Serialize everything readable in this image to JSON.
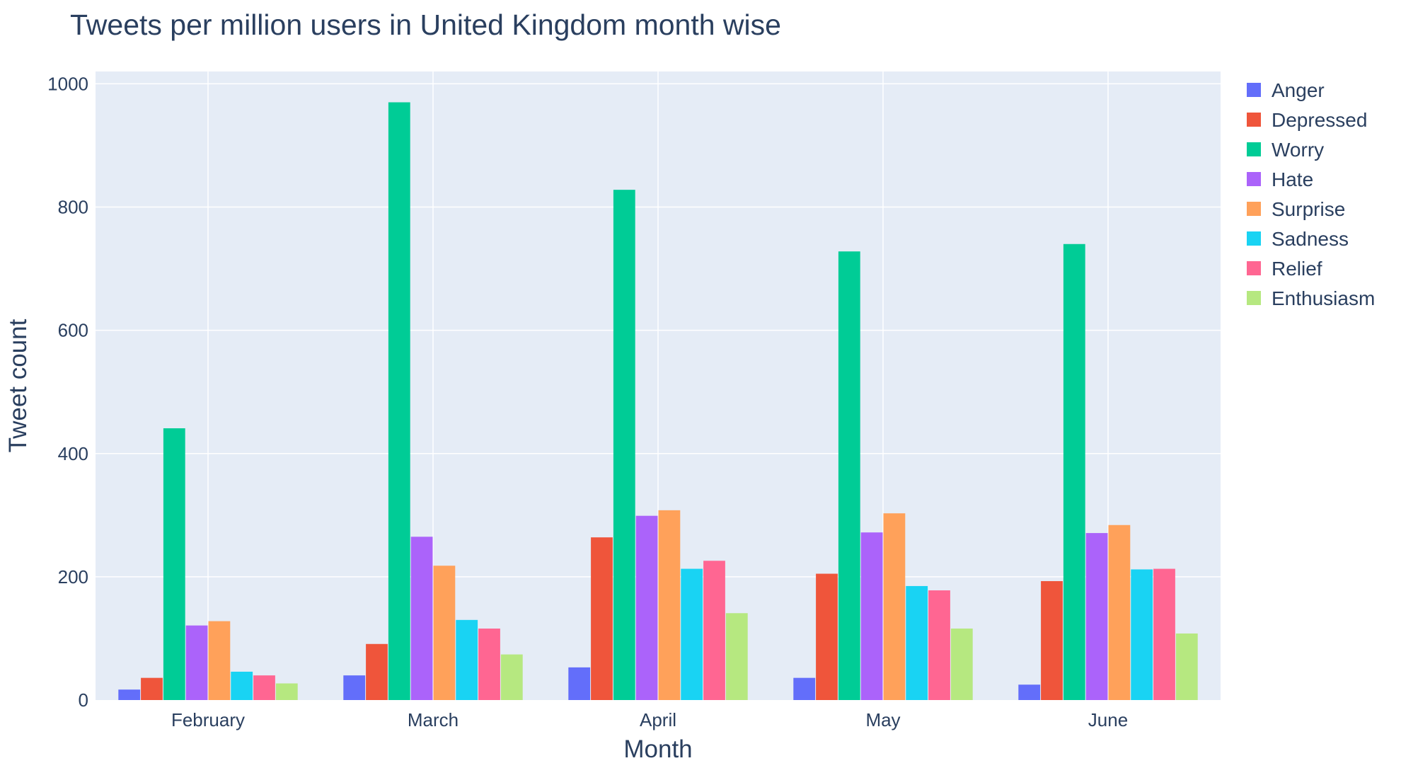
{
  "chart_data": {
    "type": "bar",
    "title": "Tweets per million users in United Kingdom month wise",
    "xlabel": "Month",
    "ylabel": "Tweet count",
    "categories": [
      "February",
      "March",
      "April",
      "May",
      "June"
    ],
    "ylim": [
      0,
      1020
    ],
    "yticks": [
      0,
      200,
      400,
      600,
      800,
      1000
    ],
    "grid": true,
    "legend_position": "right",
    "series": [
      {
        "name": "Anger",
        "color": "#636efa",
        "values": [
          17,
          40,
          53,
          36,
          25
        ]
      },
      {
        "name": "Depressed",
        "color": "#ef553b",
        "values": [
          36,
          91,
          264,
          205,
          193
        ]
      },
      {
        "name": "Worry",
        "color": "#00cc96",
        "values": [
          441,
          970,
          828,
          728,
          740
        ]
      },
      {
        "name": "Hate",
        "color": "#ab63fa",
        "values": [
          121,
          265,
          299,
          272,
          271
        ]
      },
      {
        "name": "Surprise",
        "color": "#ffa15a",
        "values": [
          128,
          218,
          308,
          303,
          284
        ]
      },
      {
        "name": "Sadness",
        "color": "#19d3f3",
        "values": [
          46,
          130,
          213,
          185,
          212
        ]
      },
      {
        "name": "Relief",
        "color": "#ff6692",
        "values": [
          40,
          116,
          226,
          178,
          213
        ]
      },
      {
        "name": "Enthusiasm",
        "color": "#b6e880",
        "values": [
          27,
          74,
          141,
          116,
          108
        ]
      }
    ]
  }
}
